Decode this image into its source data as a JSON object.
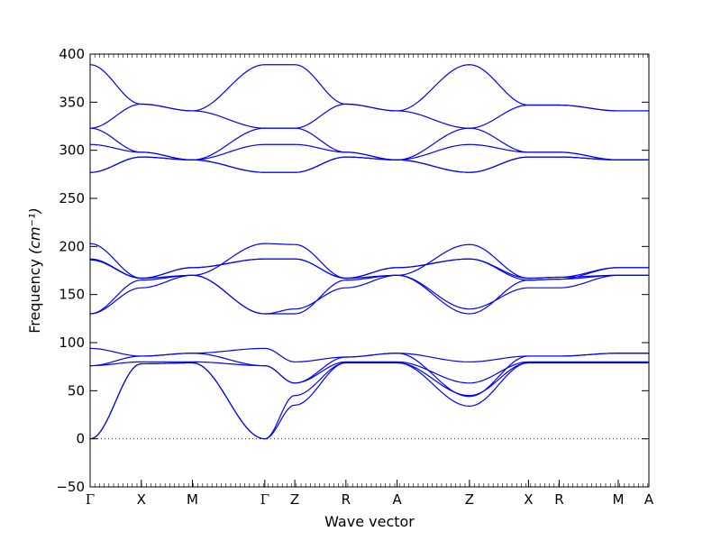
{
  "chart_data": {
    "type": "line",
    "xlabel": "Wave vector",
    "ylabel": "Frequency",
    "ylabel_unit": "(cm⁻¹)",
    "ylim": [
      -50,
      400
    ],
    "y_ticks": [
      -50,
      0,
      50,
      100,
      150,
      200,
      250,
      300,
      350,
      400
    ],
    "grid": false,
    "zero_line": "dotted",
    "line_color": "#0000ff",
    "k_points": [
      {
        "label": "Γ",
        "x": 0.0
      },
      {
        "label": "X",
        "x": 0.5
      },
      {
        "label": "M",
        "x": 1.0
      },
      {
        "label": "Γ",
        "x": 1.707
      },
      {
        "label": "Z",
        "x": 2.0
      },
      {
        "label": "R",
        "x": 2.5
      },
      {
        "label": "A",
        "x": 3.0
      },
      {
        "label": "Z",
        "x": 3.707
      },
      {
        "label": "X",
        "x": 4.284
      },
      {
        "label": "R",
        "x": 4.584
      },
      {
        "label": "M",
        "x": 5.161
      },
      {
        "label": "A",
        "x": 5.461
      }
    ],
    "series": [
      {
        "values": [
          0,
          78,
          79,
          0,
          35,
          79,
          79,
          34,
          79,
          79,
          79,
          79
        ]
      },
      {
        "values": [
          0,
          78,
          79,
          0,
          45,
          79,
          79,
          45,
          79,
          79,
          79,
          79
        ]
      },
      {
        "values": [
          76,
          80,
          80,
          76,
          58,
          80,
          80,
          58,
          80,
          80,
          80,
          80
        ]
      },
      {
        "values": [
          76,
          86,
          89,
          76,
          58,
          85,
          89,
          44,
          86,
          86,
          89,
          89
        ]
      },
      {
        "values": [
          94,
          86,
          89,
          94,
          80,
          85,
          89,
          80,
          86,
          86,
          89,
          89
        ]
      },
      {
        "values": [
          130,
          157,
          170,
          130,
          135,
          157,
          170,
          135,
          157,
          157,
          170,
          170
        ]
      },
      {
        "values": [
          130,
          165,
          170,
          130,
          130,
          165,
          170,
          130,
          165,
          166,
          170,
          170
        ]
      },
      {
        "values": [
          186,
          167,
          178,
          187,
          187,
          167,
          178,
          187,
          165,
          166,
          178,
          178
        ]
      },
      {
        "values": [
          187,
          167,
          178,
          187,
          187,
          167,
          178,
          187,
          167,
          168,
          178,
          178
        ]
      },
      {
        "values": [
          203,
          167,
          170,
          203,
          202,
          167,
          170,
          202,
          167,
          168,
          170,
          170
        ]
      },
      {
        "values": [
          277,
          293,
          290,
          277,
          277,
          293,
          290,
          277,
          293,
          293,
          290,
          290
        ]
      },
      {
        "values": [
          277,
          293,
          290,
          277,
          277,
          293,
          290,
          277,
          293,
          293,
          290,
          290
        ]
      },
      {
        "values": [
          306,
          298,
          290,
          306,
          306,
          298,
          290,
          306,
          298,
          298,
          290,
          290
        ]
      },
      {
        "values": [
          323,
          298,
          290,
          323,
          323,
          298,
          290,
          323,
          298,
          298,
          290,
          290
        ]
      },
      {
        "values": [
          323,
          348,
          341,
          323,
          323,
          348,
          341,
          323,
          347,
          347,
          341,
          341
        ]
      },
      {
        "values": [
          389,
          348,
          341,
          389,
          389,
          348,
          341,
          389,
          347,
          347,
          341,
          341
        ]
      }
    ]
  }
}
